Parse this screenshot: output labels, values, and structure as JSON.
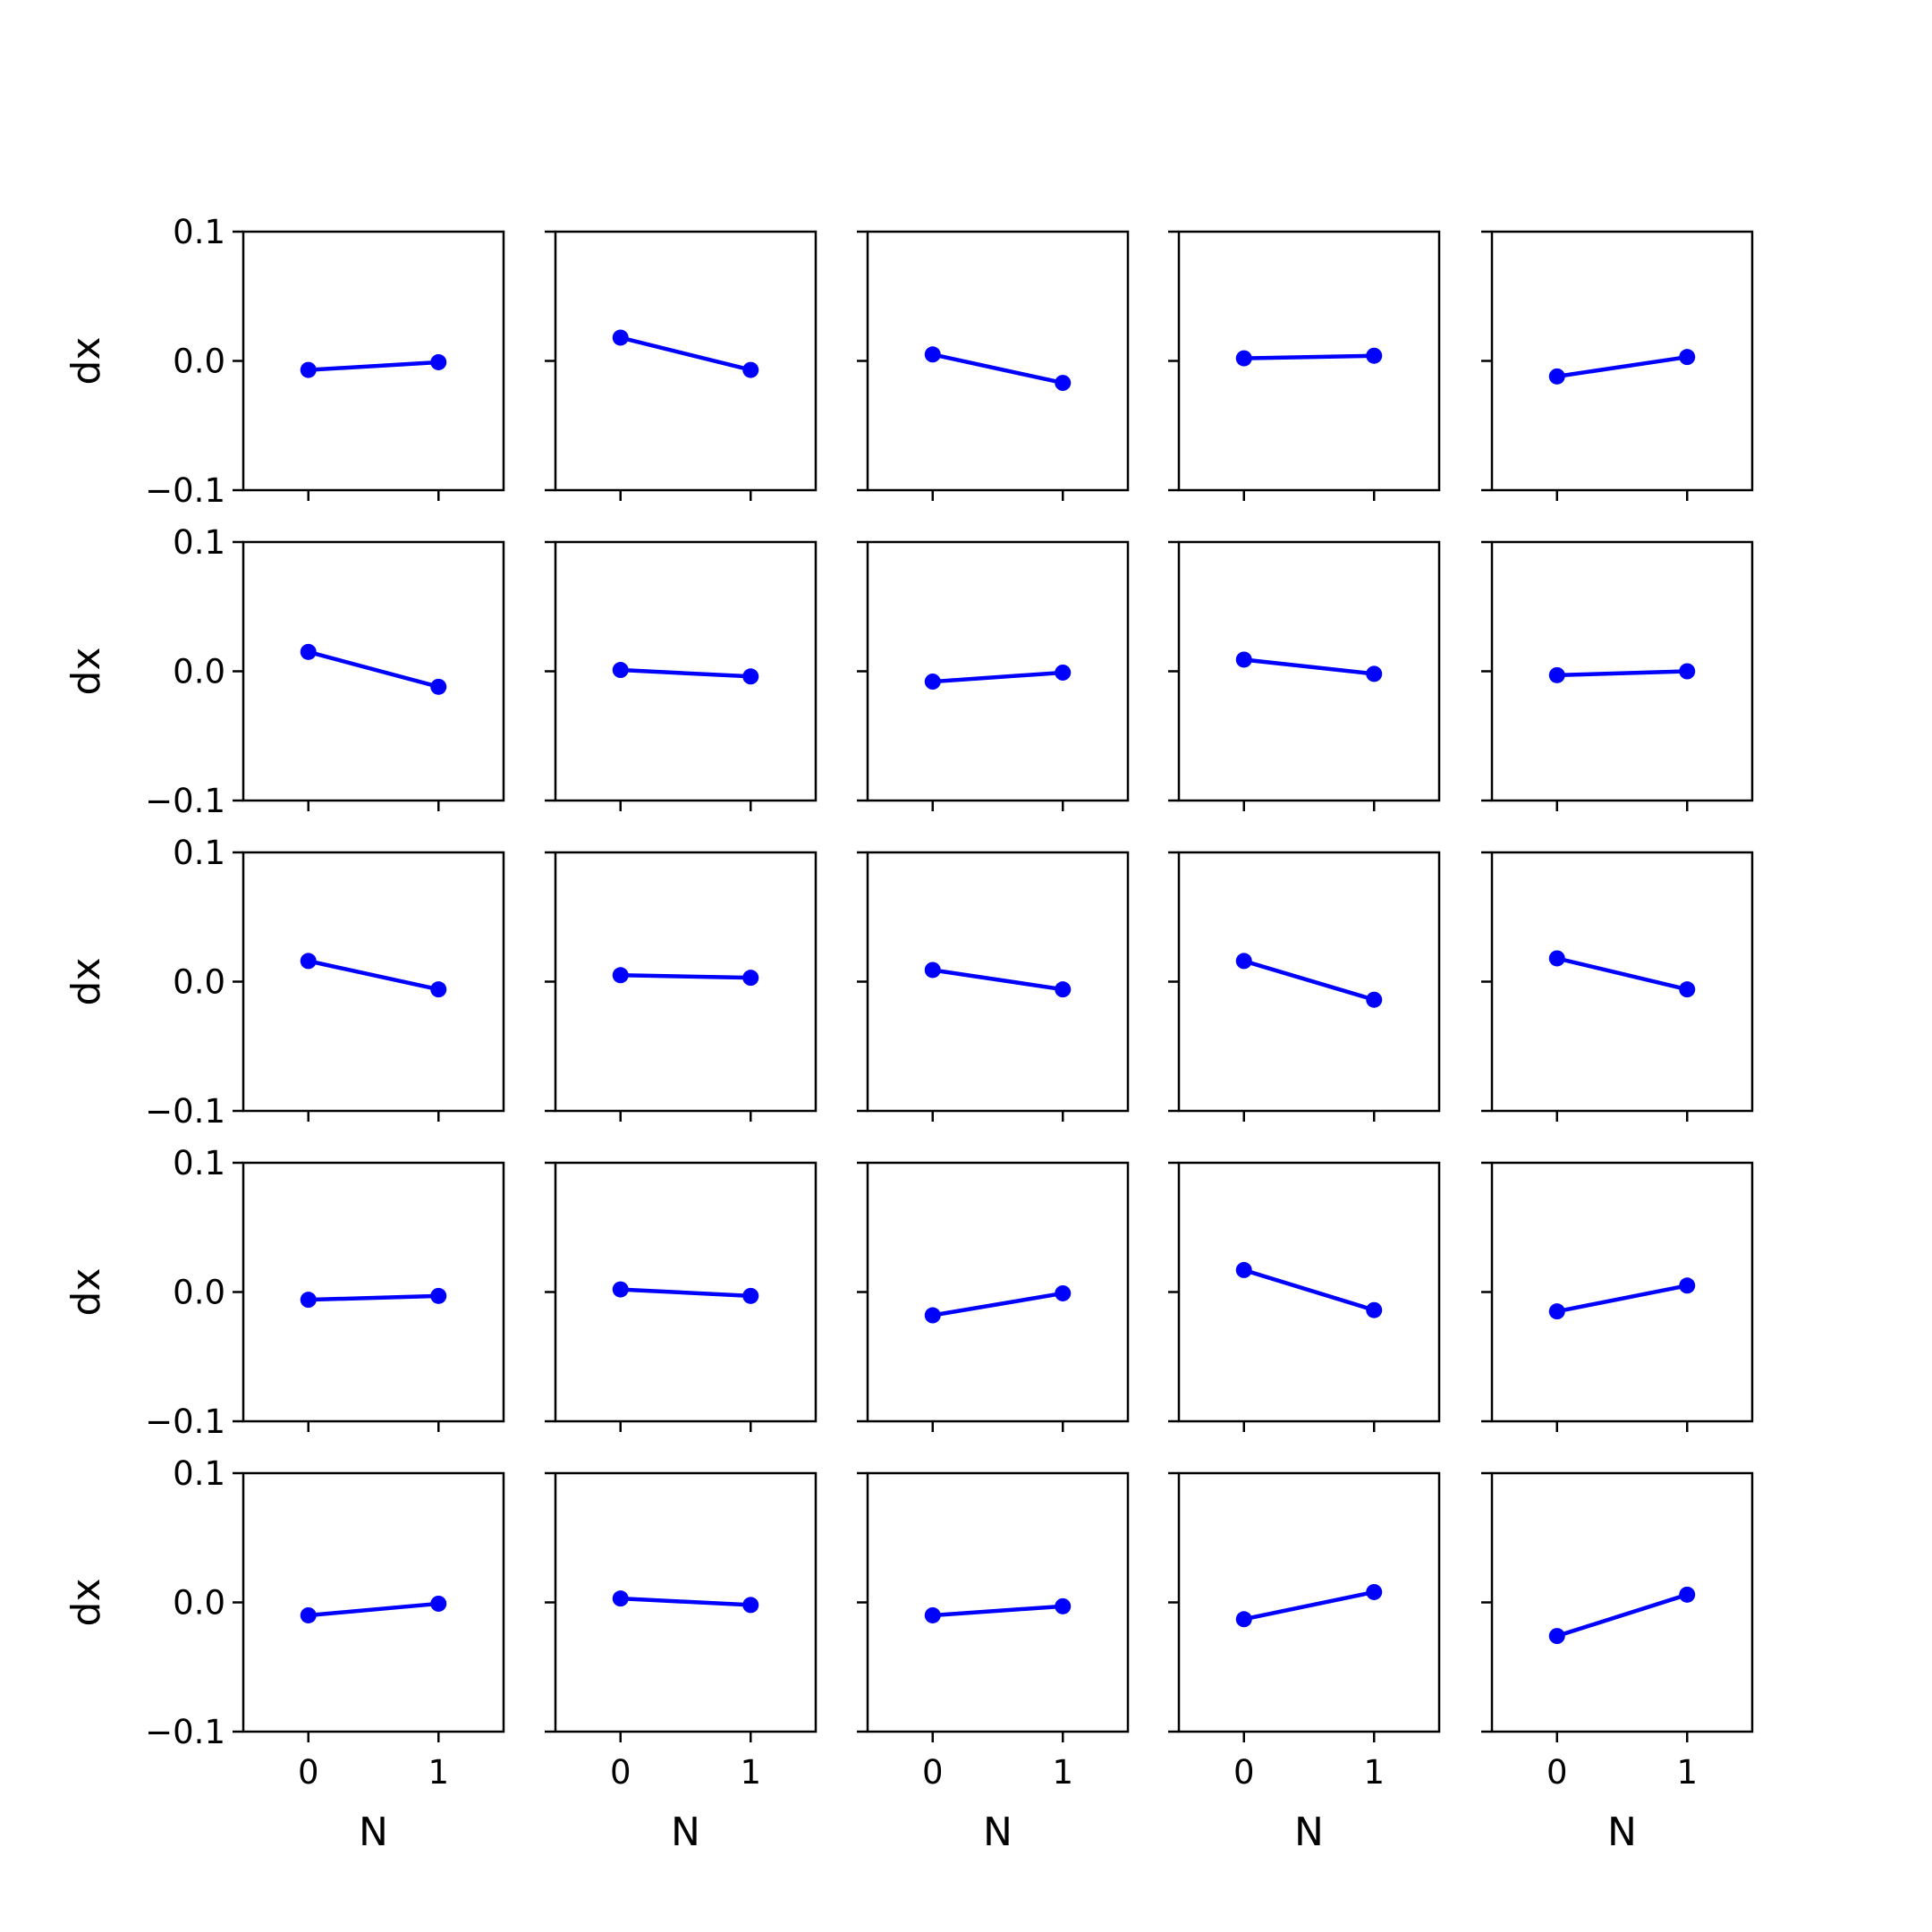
{
  "chart_data": {
    "type": "line",
    "layout": "5x5 grid of small multiples",
    "x": [
      0,
      1
    ],
    "xticks": [
      "0",
      "1"
    ],
    "yticks": [
      "0.1",
      "0.0",
      "−0.1"
    ],
    "xlim": [
      -0.5,
      1.5
    ],
    "ylim": [
      -0.1,
      0.1
    ],
    "xlabel": "N",
    "ylabel": "dx",
    "grid": false,
    "line_color": "#0000ff",
    "panels": [
      [
        [
          -0.007,
          -0.001
        ],
        [
          0.018,
          -0.007
        ],
        [
          0.005,
          -0.017
        ],
        [
          0.002,
          0.004
        ],
        [
          -0.012,
          0.003
        ]
      ],
      [
        [
          0.015,
          -0.012
        ],
        [
          0.001,
          -0.004
        ],
        [
          -0.008,
          -0.001
        ],
        [
          0.009,
          -0.002
        ],
        [
          -0.003,
          0.0
        ]
      ],
      [
        [
          0.016,
          -0.006
        ],
        [
          0.005,
          0.003
        ],
        [
          0.009,
          -0.006
        ],
        [
          0.016,
          -0.014
        ],
        [
          0.018,
          -0.006
        ]
      ],
      [
        [
          -0.006,
          -0.003
        ],
        [
          0.002,
          -0.003
        ],
        [
          -0.018,
          -0.001
        ],
        [
          0.017,
          -0.014
        ],
        [
          -0.015,
          0.005
        ]
      ],
      [
        [
          -0.01,
          -0.001
        ],
        [
          0.003,
          -0.002
        ],
        [
          -0.01,
          -0.003
        ],
        [
          -0.013,
          0.008
        ],
        [
          -0.026,
          0.006
        ]
      ]
    ]
  }
}
